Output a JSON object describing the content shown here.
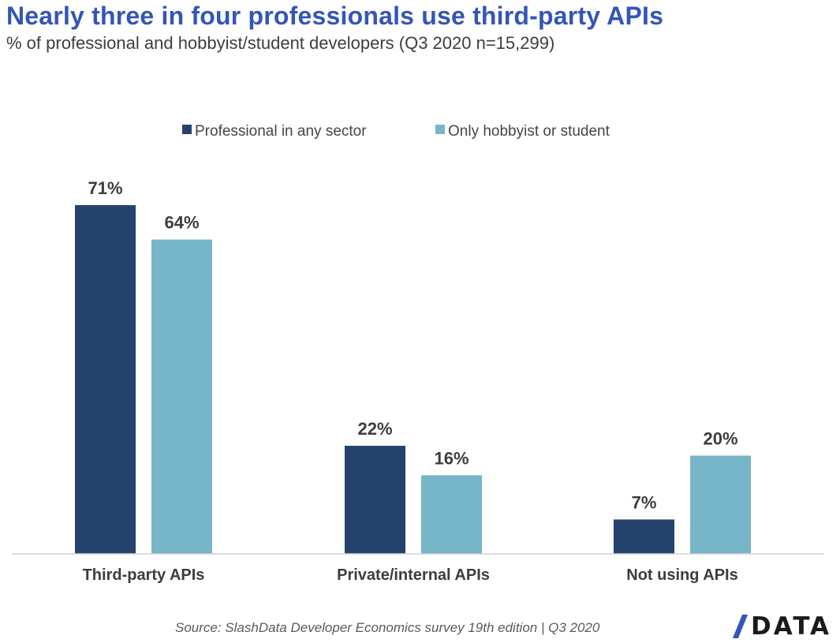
{
  "header": {
    "title": "Nearly three in four professionals use third-party APIs",
    "subtitle": "% of professional and hobbyist/student developers (Q3 2020 n=15,299)"
  },
  "footer": {
    "source": "Source: SlashData Developer Economics survey 19th edition | Q3 2020",
    "logo_text": "DATA"
  },
  "chart_data": {
    "type": "bar",
    "categories": [
      "Third-party APIs",
      "Private/internal APIs",
      "Not using APIs"
    ],
    "series": [
      {
        "name": "Professional in any sector",
        "values": [
          71,
          22,
          7
        ],
        "labels": [
          "71%",
          "22%",
          "7%"
        ],
        "color": "#24426b"
      },
      {
        "name": "Only hobbyist or student",
        "values": [
          64,
          16,
          20
        ],
        "labels": [
          "64%",
          "16%",
          "20%"
        ],
        "color": "#77b5c9"
      }
    ],
    "ylim": [
      0,
      71
    ],
    "unit": "%",
    "legend_position": "top-center",
    "grid": false
  }
}
